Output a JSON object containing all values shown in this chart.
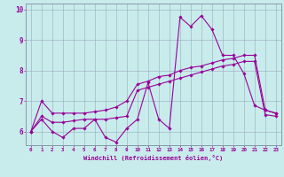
{
  "xlabel": "Windchill (Refroidissement éolien,°C)",
  "bg_color": "#c8ecec",
  "line_color": "#990099",
  "grid_color": "#99aabb",
  "spine_color": "#8899aa",
  "xlim": [
    -0.5,
    23.5
  ],
  "ylim": [
    5.55,
    10.2
  ],
  "xticks": [
    0,
    1,
    2,
    3,
    4,
    5,
    6,
    7,
    8,
    9,
    10,
    11,
    12,
    13,
    14,
    15,
    16,
    17,
    18,
    19,
    20,
    21,
    22,
    23
  ],
  "yticks": [
    6,
    7,
    8,
    9,
    10
  ],
  "s1_x": [
    0,
    1,
    2,
    3,
    4,
    5,
    6,
    7,
    8,
    9,
    10,
    11,
    12,
    13,
    14,
    15,
    16,
    17,
    18,
    19,
    20,
    21,
    22,
    23
  ],
  "s1_y": [
    6.0,
    6.4,
    6.0,
    5.8,
    6.1,
    6.1,
    6.4,
    5.8,
    5.65,
    6.1,
    6.4,
    7.6,
    6.4,
    6.1,
    9.75,
    9.45,
    9.8,
    9.35,
    8.5,
    8.5,
    7.9,
    6.85,
    6.7,
    6.6
  ],
  "s2_x": [
    0,
    1,
    2,
    3,
    4,
    5,
    6,
    7,
    8,
    9,
    10,
    11,
    12,
    13,
    14,
    15,
    16,
    17,
    18,
    19,
    20,
    21,
    22,
    23
  ],
  "s2_y": [
    6.0,
    7.0,
    6.6,
    6.6,
    6.6,
    6.6,
    6.65,
    6.7,
    6.8,
    7.0,
    7.55,
    7.65,
    7.8,
    7.85,
    8.0,
    8.1,
    8.15,
    8.25,
    8.35,
    8.4,
    8.5,
    8.5,
    6.7,
    6.6
  ],
  "s3_x": [
    0,
    1,
    2,
    3,
    4,
    5,
    6,
    7,
    8,
    9,
    10,
    11,
    12,
    13,
    14,
    15,
    16,
    17,
    18,
    19,
    20,
    21,
    22,
    23
  ],
  "s3_y": [
    6.0,
    6.5,
    6.3,
    6.3,
    6.35,
    6.4,
    6.4,
    6.4,
    6.45,
    6.5,
    7.35,
    7.45,
    7.55,
    7.65,
    7.75,
    7.85,
    7.95,
    8.05,
    8.15,
    8.2,
    8.3,
    8.3,
    6.55,
    6.5
  ]
}
